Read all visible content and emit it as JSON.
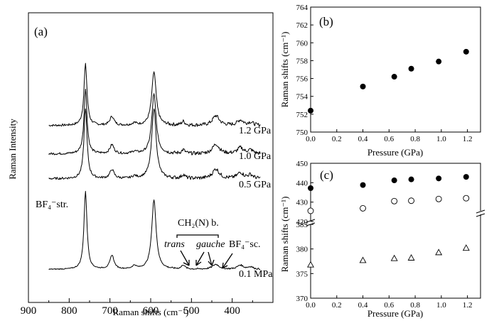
{
  "chart_data": [
    {
      "panel": "(a)",
      "type": "line",
      "xlabel": "Raman shifts (cm⁻¹)",
      "ylabel": "Raman Intensity",
      "xlim": [
        900,
        300
      ],
      "x_ticks": [
        900,
        800,
        700,
        600,
        500,
        400
      ],
      "peaks_cm-1": [
        760,
        695,
        640,
        592,
        520,
        440,
        380,
        355
      ],
      "series": [
        {
          "name": "1.2 GPa",
          "peak_heights": [
            0.82,
            0.12,
            0.03,
            0.72,
            0.05,
            0.13,
            0.07,
            0.04
          ]
        },
        {
          "name": "1.0 GPa",
          "peak_heights": [
            0.87,
            0.12,
            0.03,
            0.8,
            0.05,
            0.13,
            0.08,
            0.05
          ]
        },
        {
          "name": "0.5 GPa",
          "peak_heights": [
            0.95,
            0.12,
            0.03,
            0.95,
            0.05,
            0.13,
            0.08,
            0.05
          ]
        },
        {
          "name": "0.1 MPa",
          "peak_heights": [
            0.95,
            0.17,
            0.04,
            0.85,
            0.05,
            0.06,
            0.05,
            0.03
          ]
        }
      ],
      "annotations": {
        "bf4_str": "BF₄⁻str.",
        "ch2": "CH₂(N) b.",
        "trans": "trans",
        "gauche": "gauche",
        "bf4_sc": "BF₄⁻sc."
      }
    },
    {
      "panel": "(b)",
      "type": "scatter",
      "xlabel": "Pressure (GPa)",
      "ylabel": "Raman shifts (cm⁻¹)",
      "xlim": [
        0,
        1.3
      ],
      "ylim": [
        750,
        764
      ],
      "x_ticks": [
        "0.0",
        "0.2",
        "0.4",
        "0.6",
        "0.8",
        "1.0",
        "1.2"
      ],
      "y_ticks": [
        750,
        752,
        754,
        756,
        758,
        760,
        762,
        764
      ],
      "series": [
        {
          "marker": "filled-circle",
          "x": [
            0.0,
            0.4,
            0.64,
            0.77,
            0.98,
            1.19
          ],
          "y": [
            752.4,
            755.1,
            756.2,
            757.1,
            757.9,
            759.0
          ]
        }
      ]
    },
    {
      "panel": "(c)",
      "type": "scatter",
      "xlabel": "Pressure (GPa)",
      "ylabel": "Raman shifts (cm⁻¹)",
      "xlim": [
        0,
        1.3
      ],
      "axis_break": true,
      "upper_ylim": [
        420,
        450
      ],
      "upper_y_ticks": [
        420,
        430,
        440,
        450
      ],
      "lower_ylim": [
        370,
        385
      ],
      "lower_y_ticks": [
        370,
        375,
        380,
        385
      ],
      "x_ticks": [
        "0.0",
        "0.2",
        "0.4",
        "0.6",
        "0.8",
        "1.0",
        "1.2"
      ],
      "series": [
        {
          "marker": "filled-circle",
          "x": [
            0.0,
            0.4,
            0.64,
            0.77,
            0.98,
            1.19
          ],
          "y": [
            437.2,
            438.8,
            441.2,
            441.7,
            442.2,
            443.0
          ]
        },
        {
          "marker": "open-circle",
          "x": [
            0.0,
            0.4,
            0.64,
            0.77,
            0.98,
            1.19
          ],
          "y": [
            425.5,
            426.8,
            430.5,
            430.7,
            431.6,
            432.0
          ]
        },
        {
          "marker": "open-triangle",
          "x": [
            0.0,
            0.4,
            0.64,
            0.77,
            0.98,
            1.19
          ],
          "y": [
            376.8,
            377.7,
            378.1,
            378.2,
            379.3,
            380.2
          ]
        }
      ]
    }
  ]
}
